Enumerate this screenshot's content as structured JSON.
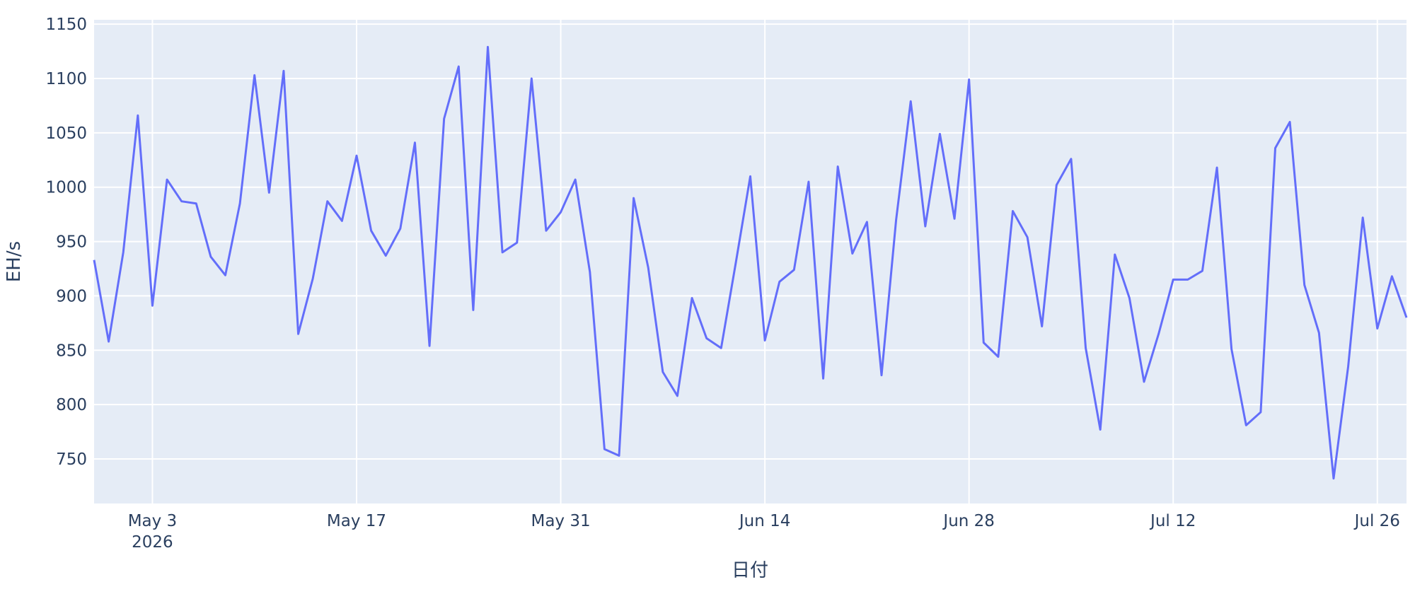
{
  "chart_data": {
    "type": "line",
    "x_title": "日付",
    "y_title": "EH/s",
    "x": [
      "2026-04-29",
      "2026-04-30",
      "2026-05-01",
      "2026-05-02",
      "2026-05-03",
      "2026-05-04",
      "2026-05-05",
      "2026-05-06",
      "2026-05-07",
      "2026-05-08",
      "2026-05-09",
      "2026-05-10",
      "2026-05-11",
      "2026-05-12",
      "2026-05-13",
      "2026-05-14",
      "2026-05-15",
      "2026-05-16",
      "2026-05-17",
      "2026-05-18",
      "2026-05-19",
      "2026-05-20",
      "2026-05-21",
      "2026-05-22",
      "2026-05-23",
      "2026-05-24",
      "2026-05-25",
      "2026-05-26",
      "2026-05-27",
      "2026-05-28",
      "2026-05-29",
      "2026-05-30",
      "2026-05-31",
      "2026-06-01",
      "2026-06-02",
      "2026-06-03",
      "2026-06-04",
      "2026-06-05",
      "2026-06-06",
      "2026-06-07",
      "2026-06-08",
      "2026-06-09",
      "2026-06-10",
      "2026-06-11",
      "2026-06-12",
      "2026-06-13",
      "2026-06-14",
      "2026-06-15",
      "2026-06-16",
      "2026-06-17",
      "2026-06-18",
      "2026-06-19",
      "2026-06-20",
      "2026-06-21",
      "2026-06-22",
      "2026-06-23",
      "2026-06-24",
      "2026-06-25",
      "2026-06-26",
      "2026-06-27",
      "2026-06-28",
      "2026-06-29",
      "2026-06-30",
      "2026-07-01",
      "2026-07-02",
      "2026-07-03",
      "2026-07-04",
      "2026-07-05",
      "2026-07-06",
      "2026-07-07",
      "2026-07-08",
      "2026-07-09",
      "2026-07-10",
      "2026-07-11",
      "2026-07-12",
      "2026-07-13",
      "2026-07-14",
      "2026-07-15",
      "2026-07-16",
      "2026-07-17",
      "2026-07-18",
      "2026-07-19",
      "2026-07-20",
      "2026-07-21",
      "2026-07-22",
      "2026-07-23",
      "2026-07-24",
      "2026-07-25",
      "2026-07-26",
      "2026-07-27",
      "2026-07-28"
    ],
    "series": [
      {
        "color": "#636efa",
        "values": [
          933,
          858,
          940,
          1066,
          891,
          1007,
          987,
          985,
          936,
          919,
          985,
          1103,
          995,
          1107,
          865,
          916,
          987,
          969,
          1029,
          960,
          937,
          962,
          1041,
          854,
          1063,
          1111,
          887,
          1129,
          940,
          949,
          1100,
          960,
          977,
          1007,
          922,
          759,
          753,
          990,
          926,
          830,
          808,
          898,
          861,
          852,
          930,
          1010,
          859,
          913,
          924,
          1005,
          824,
          1019,
          939,
          968,
          827,
          970,
          1079,
          964,
          1049,
          971,
          1099,
          857,
          844,
          978,
          954,
          872,
          1002,
          1026,
          852,
          777,
          938,
          898,
          821,
          865,
          915,
          915,
          923,
          1018,
          851,
          781,
          793,
          1036,
          1060,
          910,
          866,
          732,
          835,
          972,
          870,
          918,
          880
        ]
      }
    ],
    "xlim": [
      "2026-04-29",
      "2026-07-28"
    ],
    "xticks": [
      {
        "value": "2026-05-03",
        "label": "May 3\n2026"
      },
      {
        "value": "2026-05-17",
        "label": "May 17"
      },
      {
        "value": "2026-05-31",
        "label": "May 31"
      },
      {
        "value": "2026-06-14",
        "label": "Jun 14"
      },
      {
        "value": "2026-06-28",
        "label": "Jun 28"
      },
      {
        "value": "2026-07-12",
        "label": "Jul 12"
      },
      {
        "value": "2026-07-26",
        "label": "Jul 26"
      }
    ],
    "ylim": [
      709,
      1154
    ],
    "yticks": [
      750,
      800,
      850,
      900,
      950,
      1000,
      1050,
      1100,
      1150
    ],
    "grid": true,
    "plot_bg": "#e5ecf6",
    "grid_color": "#ffffff"
  }
}
